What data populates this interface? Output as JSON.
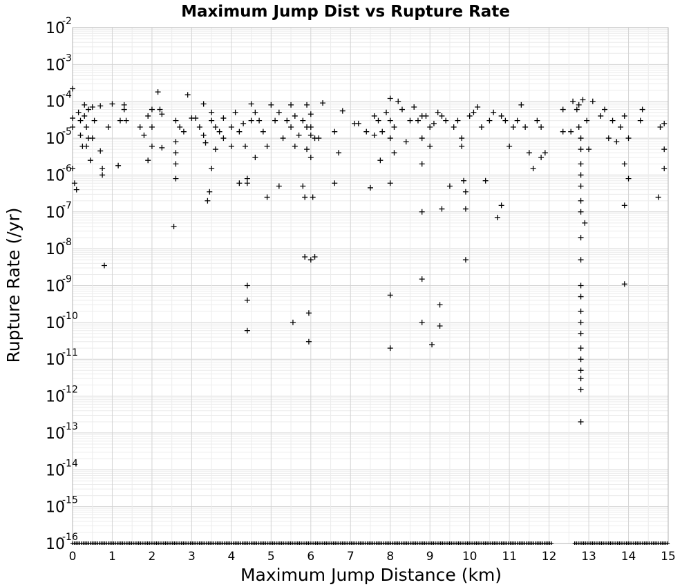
{
  "chart_data": {
    "type": "scatter",
    "title": "Maximum Jump Dist vs Rupture Rate",
    "xlabel": "Maximum Jump Distance (km)",
    "ylabel": "Rupture Rate (/yr)",
    "xlim": [
      0,
      15
    ],
    "ylim": [
      1e-16,
      0.01
    ],
    "yscale": "log",
    "marker": "+",
    "color": "#000000",
    "grid": true,
    "x_ticks": [
      "0",
      "1",
      "2",
      "3",
      "4",
      "5",
      "6",
      "7",
      "8",
      "9",
      "10",
      "11",
      "12",
      "13",
      "14",
      "15"
    ],
    "y_ticks": [
      {
        "base": "10",
        "exp": "-2"
      },
      {
        "base": "10",
        "exp": "-3"
      },
      {
        "base": "10",
        "exp": "-4"
      },
      {
        "base": "10",
        "exp": "-5"
      },
      {
        "base": "10",
        "exp": "-6"
      },
      {
        "base": "10",
        "exp": "-7"
      },
      {
        "base": "10",
        "exp": "-8"
      },
      {
        "base": "10",
        "exp": "-9"
      },
      {
        "base": "10",
        "exp": "-10"
      },
      {
        "base": "10",
        "exp": "-11"
      },
      {
        "base": "10",
        "exp": "-12"
      },
      {
        "base": "10",
        "exp": "-13"
      },
      {
        "base": "10",
        "exp": "-14"
      },
      {
        "base": "10",
        "exp": "-15"
      },
      {
        "base": "10",
        "exp": "-16"
      }
    ],
    "points": [
      [
        0.0,
        0.00022
      ],
      [
        0.0,
        3.5e-05
      ],
      [
        0.0,
        2e-05
      ],
      [
        0.0,
        1.5e-06
      ],
      [
        0.05,
        6e-07
      ],
      [
        0.1,
        4e-07
      ],
      [
        0.15,
        5e-05
      ],
      [
        0.2,
        3e-05
      ],
      [
        0.2,
        1.2e-05
      ],
      [
        0.25,
        6e-06
      ],
      [
        0.3,
        8e-05
      ],
      [
        0.3,
        4e-05
      ],
      [
        0.35,
        2e-05
      ],
      [
        0.35,
        6e-06
      ],
      [
        0.4,
        1e-05
      ],
      [
        0.4,
        6e-05
      ],
      [
        0.45,
        2.5e-06
      ],
      [
        0.5,
        7e-05
      ],
      [
        0.5,
        1e-05
      ],
      [
        0.55,
        3e-05
      ],
      [
        0.7,
        7.5e-05
      ],
      [
        0.7,
        4.5e-06
      ],
      [
        0.75,
        1.5e-06
      ],
      [
        0.75,
        1e-06
      ],
      [
        0.8,
        3.5e-09
      ],
      [
        0.9,
        2e-05
      ],
      [
        1.0,
        8.5e-05
      ],
      [
        1.15,
        1.8e-06
      ],
      [
        1.2,
        3e-05
      ],
      [
        1.3,
        6e-05
      ],
      [
        1.3,
        8e-05
      ],
      [
        1.35,
        3e-05
      ],
      [
        1.7,
        2e-05
      ],
      [
        1.8,
        1.2e-05
      ],
      [
        1.9,
        4e-05
      ],
      [
        1.9,
        2.5e-06
      ],
      [
        2.0,
        6e-05
      ],
      [
        2.0,
        2e-05
      ],
      [
        2.0,
        6e-06
      ],
      [
        2.15,
        0.00018
      ],
      [
        2.2,
        6e-05
      ],
      [
        2.25,
        4.5e-05
      ],
      [
        2.25,
        5.5e-06
      ],
      [
        2.55,
        4e-08
      ],
      [
        2.6,
        3e-05
      ],
      [
        2.6,
        8e-06
      ],
      [
        2.6,
        4e-06
      ],
      [
        2.6,
        2e-06
      ],
      [
        2.6,
        8e-07
      ],
      [
        2.7,
        2e-05
      ],
      [
        2.8,
        1.5e-05
      ],
      [
        2.9,
        0.00015
      ],
      [
        3.0,
        3.5e-05
      ],
      [
        3.1,
        3.5e-05
      ],
      [
        3.2,
        2e-05
      ],
      [
        3.3,
        8.5e-05
      ],
      [
        3.3,
        1.2e-05
      ],
      [
        3.35,
        7.5e-06
      ],
      [
        3.4,
        2e-07
      ],
      [
        3.45,
        3.5e-07
      ],
      [
        3.5,
        5e-05
      ],
      [
        3.5,
        3e-05
      ],
      [
        3.5,
        1.5e-06
      ],
      [
        3.6,
        2e-05
      ],
      [
        3.6,
        5e-06
      ],
      [
        3.7,
        1.5e-05
      ],
      [
        3.8,
        3.5e-05
      ],
      [
        3.8,
        1e-05
      ],
      [
        4.0,
        2e-05
      ],
      [
        4.0,
        6e-06
      ],
      [
        4.1,
        5e-05
      ],
      [
        4.2,
        1.5e-05
      ],
      [
        4.2,
        6e-07
      ],
      [
        4.3,
        2.5e-05
      ],
      [
        4.35,
        6e-06
      ],
      [
        4.4,
        6e-07
      ],
      [
        4.4,
        8e-07
      ],
      [
        4.4,
        1e-09
      ],
      [
        4.4,
        4e-10
      ],
      [
        4.4,
        6e-11
      ],
      [
        4.5,
        8.5e-05
      ],
      [
        4.5,
        3e-05
      ],
      [
        4.6,
        5e-05
      ],
      [
        4.6,
        3e-06
      ],
      [
        4.7,
        3e-05
      ],
      [
        4.8,
        1.5e-05
      ],
      [
        4.9,
        6e-06
      ],
      [
        4.9,
        2.5e-07
      ],
      [
        5.0,
        8e-05
      ],
      [
        5.1,
        3e-05
      ],
      [
        5.2,
        5e-05
      ],
      [
        5.2,
        5e-07
      ],
      [
        5.3,
        1e-05
      ],
      [
        5.4,
        3e-05
      ],
      [
        5.5,
        8e-05
      ],
      [
        5.5,
        2e-05
      ],
      [
        5.55,
        1e-10
      ],
      [
        5.6,
        4e-05
      ],
      [
        5.6,
        6e-06
      ],
      [
        5.7,
        1.2e-05
      ],
      [
        5.8,
        3e-05
      ],
      [
        5.8,
        5e-07
      ],
      [
        5.85,
        2.5e-07
      ],
      [
        5.85,
        6e-09
      ],
      [
        5.9,
        8e-05
      ],
      [
        5.9,
        2e-05
      ],
      [
        5.9,
        5e-06
      ],
      [
        5.95,
        1.8e-10
      ],
      [
        5.95,
        3e-11
      ],
      [
        6.0,
        4.5e-05
      ],
      [
        6.0,
        2e-05
      ],
      [
        6.0,
        1.2e-05
      ],
      [
        6.0,
        3e-06
      ],
      [
        6.0,
        5e-09
      ],
      [
        6.05,
        2.5e-07
      ],
      [
        6.1,
        6e-09
      ],
      [
        6.1,
        1e-05
      ],
      [
        6.2,
        1e-05
      ],
      [
        6.3,
        9e-05
      ],
      [
        6.6,
        6e-07
      ],
      [
        6.6,
        1.5e-05
      ],
      [
        6.7,
        4e-06
      ],
      [
        6.8,
        5.5e-05
      ],
      [
        7.1,
        2.5e-05
      ],
      [
        7.2,
        2.5e-05
      ],
      [
        7.4,
        1.5e-05
      ],
      [
        7.5,
        4.5e-07
      ],
      [
        7.6,
        4e-05
      ],
      [
        7.6,
        1.2e-05
      ],
      [
        7.7,
        3e-05
      ],
      [
        7.75,
        2.5e-06
      ],
      [
        7.8,
        1.5e-05
      ],
      [
        7.9,
        5e-05
      ],
      [
        8.0,
        0.00012
      ],
      [
        8.0,
        3e-05
      ],
      [
        8.0,
        1e-05
      ],
      [
        8.0,
        6e-07
      ],
      [
        8.0,
        5.5e-10
      ],
      [
        8.0,
        2e-11
      ],
      [
        8.1,
        2e-05
      ],
      [
        8.1,
        4e-06
      ],
      [
        8.2,
        0.0001
      ],
      [
        8.3,
        6e-05
      ],
      [
        8.4,
        8e-06
      ],
      [
        8.5,
        3e-05
      ],
      [
        8.6,
        7e-05
      ],
      [
        8.7,
        3e-05
      ],
      [
        8.8,
        4e-05
      ],
      [
        8.8,
        1e-05
      ],
      [
        8.8,
        2e-06
      ],
      [
        8.8,
        1e-07
      ],
      [
        8.8,
        1.5e-09
      ],
      [
        8.8,
        1e-10
      ],
      [
        8.9,
        4e-05
      ],
      [
        9.0,
        2e-05
      ],
      [
        9.0,
        6e-06
      ],
      [
        9.05,
        2.5e-11
      ],
      [
        9.1,
        2.5e-05
      ],
      [
        9.2,
        5e-05
      ],
      [
        9.25,
        3e-10
      ],
      [
        9.25,
        8e-11
      ],
      [
        9.3,
        4e-05
      ],
      [
        9.3,
        1.2e-07
      ],
      [
        9.4,
        3e-05
      ],
      [
        9.5,
        5e-07
      ],
      [
        9.6,
        2e-05
      ],
      [
        9.7,
        3e-05
      ],
      [
        9.8,
        1e-05
      ],
      [
        9.8,
        6e-06
      ],
      [
        9.85,
        7e-07
      ],
      [
        9.9,
        1.2e-07
      ],
      [
        9.9,
        5e-09
      ],
      [
        9.9,
        3.5e-07
      ],
      [
        10.0,
        4e-05
      ],
      [
        10.1,
        5e-05
      ],
      [
        10.2,
        7e-05
      ],
      [
        10.3,
        2e-05
      ],
      [
        10.4,
        7e-07
      ],
      [
        10.5,
        3e-05
      ],
      [
        10.6,
        5e-05
      ],
      [
        10.7,
        7e-08
      ],
      [
        10.8,
        4e-05
      ],
      [
        10.8,
        1.5e-07
      ],
      [
        10.9,
        3e-05
      ],
      [
        11.0,
        6e-06
      ],
      [
        11.1,
        2e-05
      ],
      [
        11.2,
        3e-05
      ],
      [
        11.3,
        8e-05
      ],
      [
        11.4,
        2e-05
      ],
      [
        11.5,
        4e-06
      ],
      [
        11.6,
        1.5e-06
      ],
      [
        11.7,
        3e-05
      ],
      [
        11.8,
        2e-05
      ],
      [
        11.8,
        3e-06
      ],
      [
        11.9,
        4e-06
      ],
      [
        12.35,
        6e-05
      ],
      [
        12.35,
        1.5e-05
      ],
      [
        12.55,
        1.5e-05
      ],
      [
        12.6,
        0.0001
      ],
      [
        12.7,
        6e-05
      ],
      [
        12.75,
        8e-05
      ],
      [
        12.75,
        2e-05
      ],
      [
        12.8,
        1e-05
      ],
      [
        12.8,
        5e-06
      ],
      [
        12.8,
        2e-06
      ],
      [
        12.8,
        1e-06
      ],
      [
        12.8,
        5e-07
      ],
      [
        12.8,
        2e-07
      ],
      [
        12.8,
        1e-07
      ],
      [
        12.8,
        2e-08
      ],
      [
        12.8,
        5e-09
      ],
      [
        12.8,
        1e-09
      ],
      [
        12.8,
        5e-10
      ],
      [
        12.8,
        2e-10
      ],
      [
        12.8,
        1e-10
      ],
      [
        12.8,
        5e-11
      ],
      [
        12.8,
        2e-11
      ],
      [
        12.8,
        1e-11
      ],
      [
        12.8,
        5e-12
      ],
      [
        12.8,
        3e-12
      ],
      [
        12.8,
        1.5e-12
      ],
      [
        12.8,
        2e-13
      ],
      [
        12.85,
        0.00011
      ],
      [
        12.9,
        5e-08
      ],
      [
        12.95,
        3e-05
      ],
      [
        13.0,
        5e-06
      ],
      [
        13.1,
        0.0001
      ],
      [
        13.3,
        4e-05
      ],
      [
        13.4,
        6e-05
      ],
      [
        13.5,
        1e-05
      ],
      [
        13.6,
        3e-05
      ],
      [
        13.7,
        8e-06
      ],
      [
        13.8,
        2e-05
      ],
      [
        13.9,
        4e-05
      ],
      [
        13.9,
        2e-06
      ],
      [
        13.9,
        1.5e-07
      ],
      [
        13.9,
        1.1e-09
      ],
      [
        14.0,
        1e-05
      ],
      [
        14.0,
        8e-07
      ],
      [
        14.3,
        3e-05
      ],
      [
        14.35,
        6e-05
      ],
      [
        14.75,
        2.5e-07
      ],
      [
        14.8,
        2e-05
      ],
      [
        14.9,
        2.5e-05
      ],
      [
        14.9,
        5e-06
      ],
      [
        14.9,
        1.5e-06
      ]
    ]
  }
}
